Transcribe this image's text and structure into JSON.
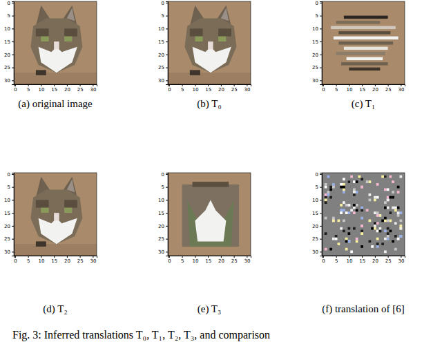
{
  "chart_data": [
    {
      "type": "image",
      "title": "(a) original image",
      "xlim": [
        -0.5,
        31.5
      ],
      "ylim": [
        31.5,
        -0.5
      ],
      "xticks": [
        0,
        5,
        10,
        15,
        20,
        25,
        30
      ],
      "yticks": [
        0,
        5,
        10,
        15,
        20,
        25,
        30
      ]
    },
    {
      "type": "image",
      "title": "(b) T₀",
      "xlim": [
        -0.5,
        31.5
      ],
      "ylim": [
        31.5,
        -0.5
      ],
      "xticks": [
        0,
        5,
        10,
        15,
        20,
        25,
        30
      ],
      "yticks": [
        0,
        5,
        10,
        15,
        20,
        25,
        30
      ]
    },
    {
      "type": "image",
      "title": "(c) T₁",
      "xlim": [
        -0.5,
        31.5
      ],
      "ylim": [
        31.5,
        -0.5
      ],
      "xticks": [
        0,
        5,
        10,
        15,
        20,
        25,
        30
      ],
      "yticks": [
        0,
        5,
        10,
        15,
        20,
        25,
        30
      ]
    },
    {
      "type": "image",
      "title": "(d) T₂",
      "xlim": [
        -0.5,
        31.5
      ],
      "ylim": [
        31.5,
        -0.5
      ],
      "xticks": [
        0,
        5,
        10,
        15,
        20,
        25,
        30
      ],
      "yticks": [
        0,
        5,
        10,
        15,
        20,
        25,
        30
      ]
    },
    {
      "type": "image",
      "title": "(e) T₃",
      "xlim": [
        -0.5,
        31.5
      ],
      "ylim": [
        31.5,
        -0.5
      ],
      "xticks": [
        0,
        5,
        10,
        15,
        20,
        25,
        30
      ],
      "yticks": [
        0,
        5,
        10,
        15,
        20,
        25,
        30
      ]
    },
    {
      "type": "image",
      "title": "(f) translation of [6]",
      "xlim": [
        -0.5,
        31.5
      ],
      "ylim": [
        31.5,
        -0.5
      ],
      "xticks": [
        0,
        5,
        10,
        15,
        20,
        25,
        30
      ],
      "yticks": [
        0,
        5,
        10,
        15,
        20,
        25,
        30
      ]
    }
  ],
  "caption": "Fig. 3: Inferred translations T₀, T₁, T₂, T₃, and comparison"
}
